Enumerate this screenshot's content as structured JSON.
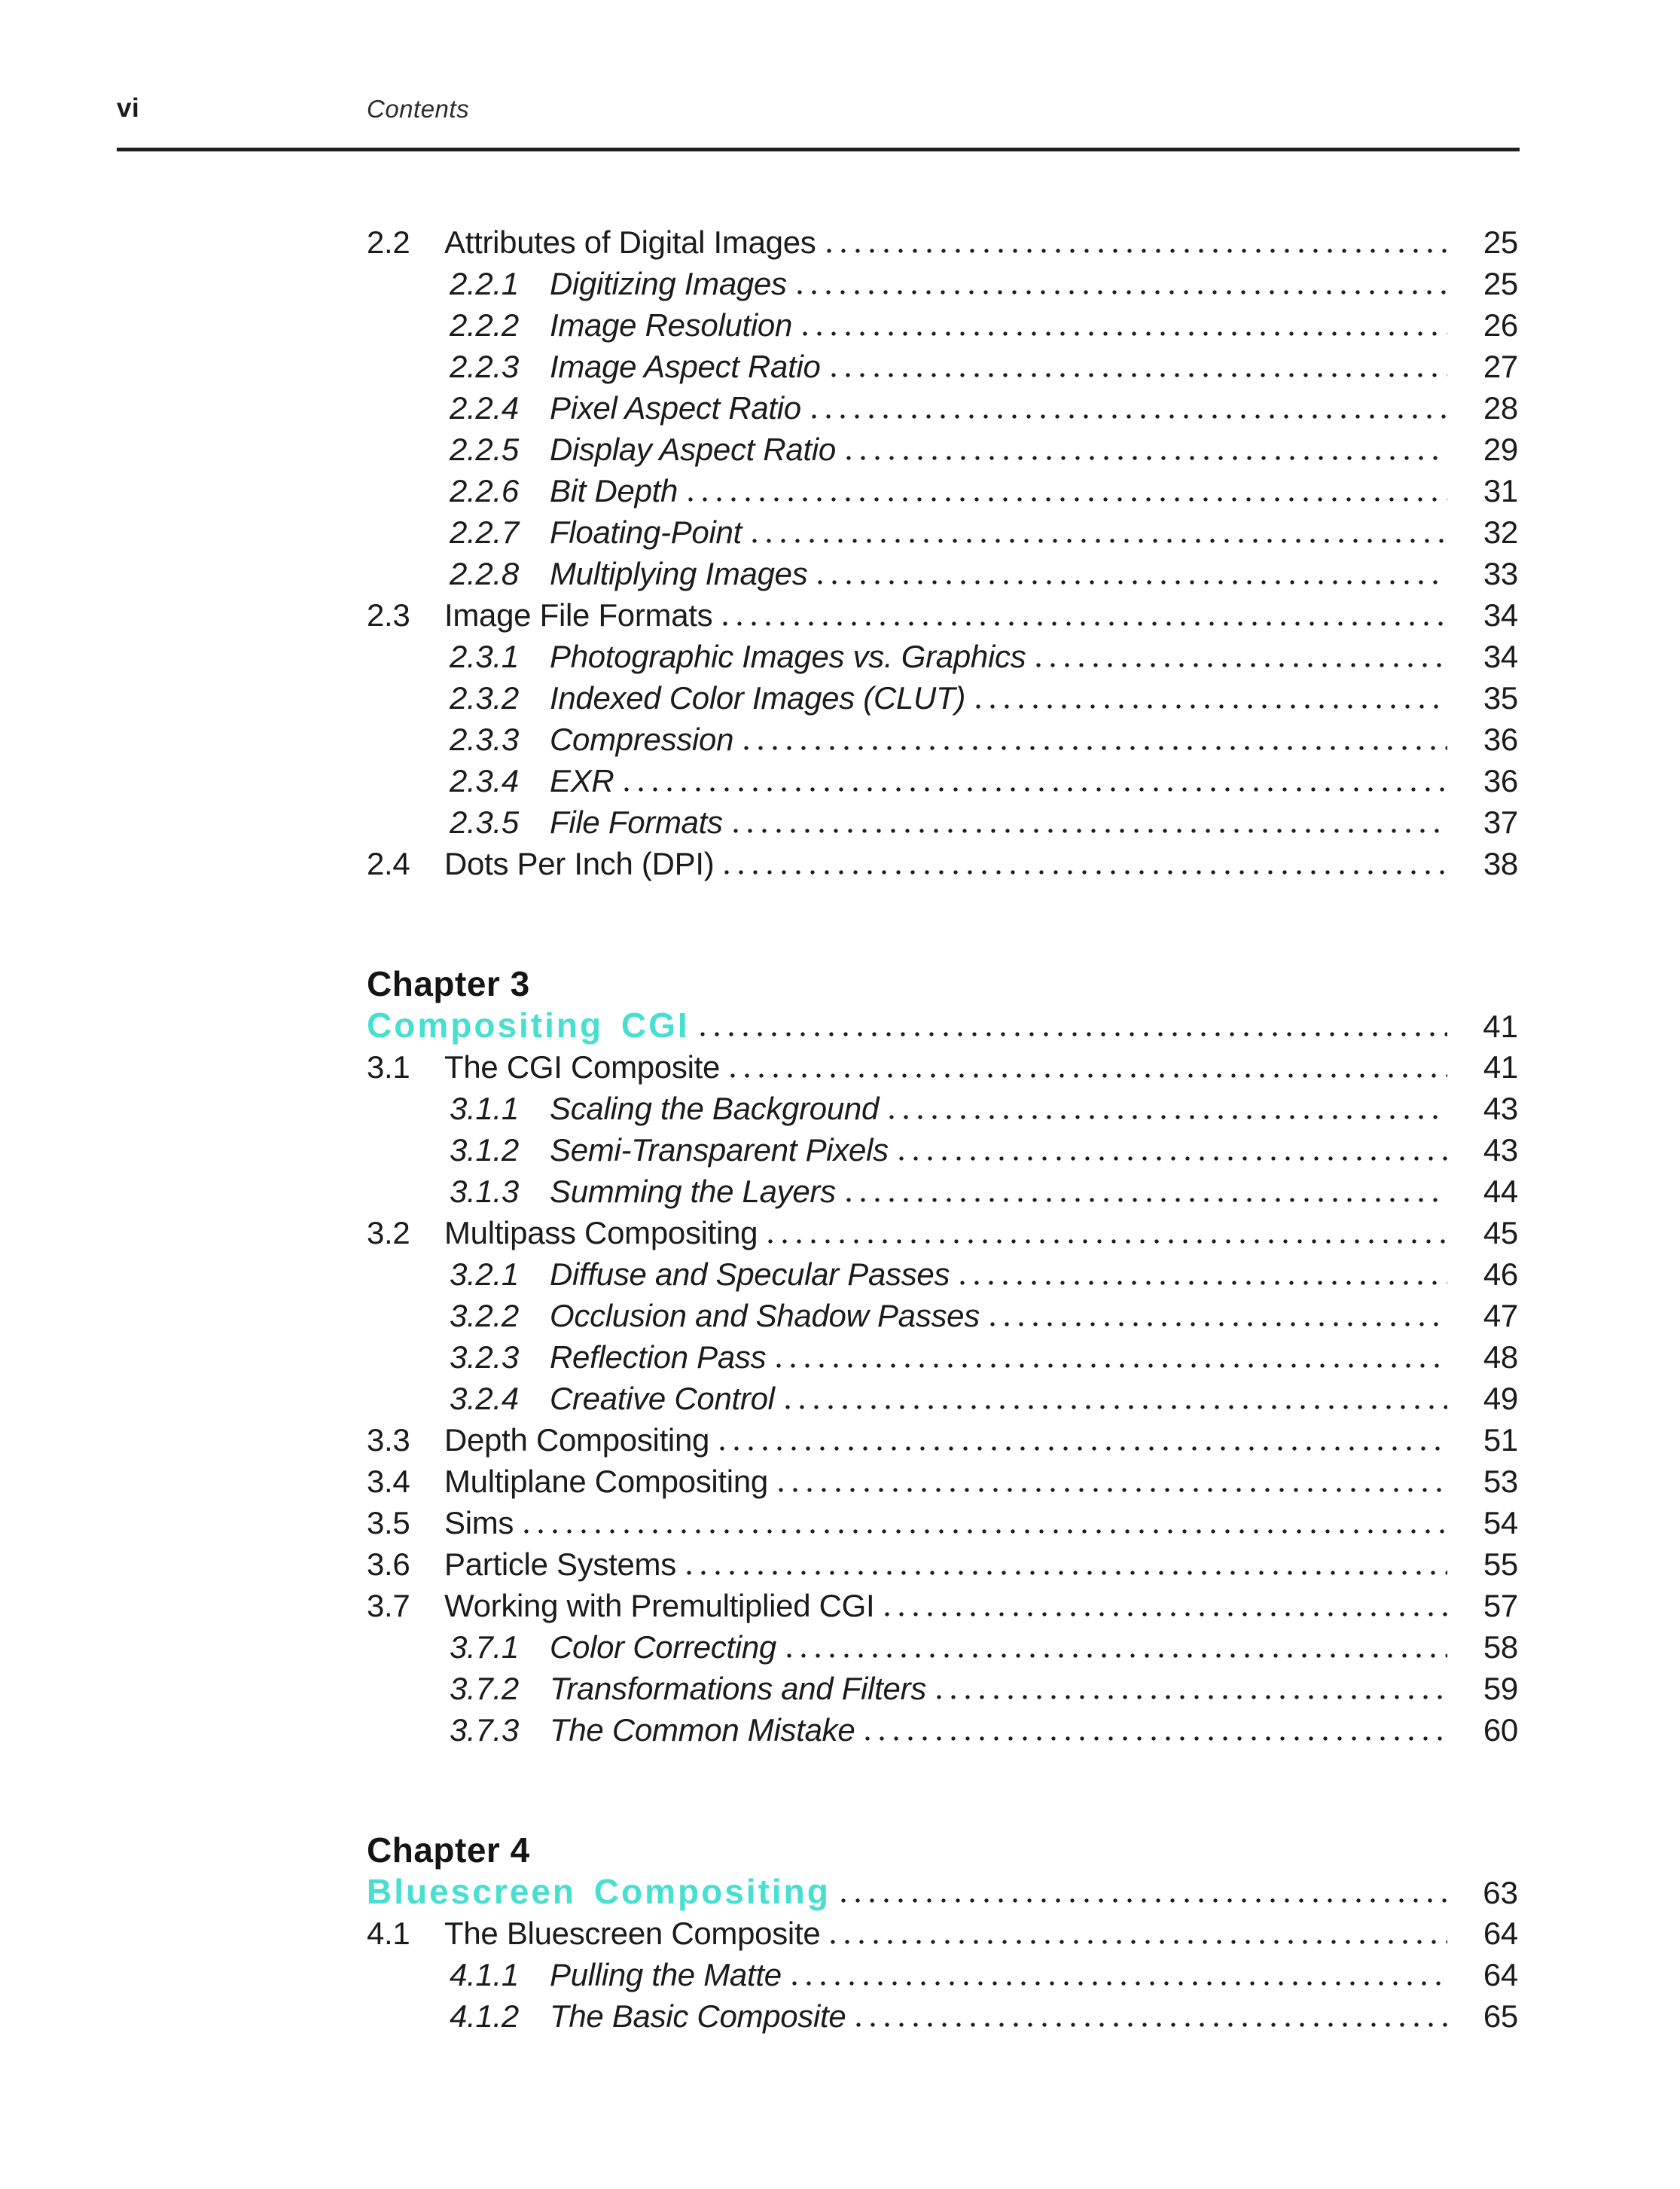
{
  "header": {
    "folio": "vi",
    "running_title": "Contents"
  },
  "colors": {
    "accent": "#46dfd0",
    "text": "#1b1b1b"
  },
  "toc": [
    {
      "type": "entry",
      "level": 1,
      "number": "2.2",
      "title": "Attributes of Digital Images",
      "page": "25"
    },
    {
      "type": "entry",
      "level": 2,
      "number": "2.2.1",
      "title": "Digitizing Images",
      "page": "25"
    },
    {
      "type": "entry",
      "level": 2,
      "number": "2.2.2",
      "title": "Image Resolution",
      "page": "26"
    },
    {
      "type": "entry",
      "level": 2,
      "number": "2.2.3",
      "title": "Image Aspect Ratio",
      "page": "27"
    },
    {
      "type": "entry",
      "level": 2,
      "number": "2.2.4",
      "title": "Pixel Aspect Ratio",
      "page": "28"
    },
    {
      "type": "entry",
      "level": 2,
      "number": "2.2.5",
      "title": "Display Aspect Ratio",
      "page": "29"
    },
    {
      "type": "entry",
      "level": 2,
      "number": "2.2.6",
      "title": "Bit Depth",
      "page": "31"
    },
    {
      "type": "entry",
      "level": 2,
      "number": "2.2.7",
      "title": "Floating-Point",
      "page": "32"
    },
    {
      "type": "entry",
      "level": 2,
      "number": "2.2.8",
      "title": "Multiplying Images",
      "page": "33"
    },
    {
      "type": "entry",
      "level": 1,
      "number": "2.3",
      "title": "Image File Formats",
      "page": "34"
    },
    {
      "type": "entry",
      "level": 2,
      "number": "2.3.1",
      "title": "Photographic Images vs. Graphics",
      "page": "34"
    },
    {
      "type": "entry",
      "level": 2,
      "number": "2.3.2",
      "title": "Indexed Color Images (CLUT)",
      "page": "35"
    },
    {
      "type": "entry",
      "level": 2,
      "number": "2.3.3",
      "title": "Compression",
      "page": "36"
    },
    {
      "type": "entry",
      "level": 2,
      "number": "2.3.4",
      "title": "EXR",
      "page": "36"
    },
    {
      "type": "entry",
      "level": 2,
      "number": "2.3.5",
      "title": "File Formats",
      "page": "37"
    },
    {
      "type": "entry",
      "level": 1,
      "number": "2.4",
      "title": "Dots Per Inch (DPI)",
      "page": "38"
    },
    {
      "type": "chapter",
      "label": "Chapter 3",
      "title": "Compositing CGI",
      "page": "41"
    },
    {
      "type": "entry",
      "level": 1,
      "number": "3.1",
      "title": "The CGI Composite",
      "page": "41"
    },
    {
      "type": "entry",
      "level": 2,
      "number": "3.1.1",
      "title": "Scaling the Background",
      "page": "43"
    },
    {
      "type": "entry",
      "level": 2,
      "number": "3.1.2",
      "title": "Semi-Transparent Pixels",
      "page": "43"
    },
    {
      "type": "entry",
      "level": 2,
      "number": "3.1.3",
      "title": "Summing the Layers",
      "page": "44"
    },
    {
      "type": "entry",
      "level": 1,
      "number": "3.2",
      "title": "Multipass Compositing",
      "page": "45"
    },
    {
      "type": "entry",
      "level": 2,
      "number": "3.2.1",
      "title": "Diffuse and Specular Passes",
      "page": "46"
    },
    {
      "type": "entry",
      "level": 2,
      "number": "3.2.2",
      "title": "Occlusion and Shadow Passes",
      "page": "47"
    },
    {
      "type": "entry",
      "level": 2,
      "number": "3.2.3",
      "title": "Reflection Pass",
      "page": "48"
    },
    {
      "type": "entry",
      "level": 2,
      "number": "3.2.4",
      "title": "Creative Control",
      "page": "49"
    },
    {
      "type": "entry",
      "level": 1,
      "number": "3.3",
      "title": "Depth Compositing",
      "page": "51"
    },
    {
      "type": "entry",
      "level": 1,
      "number": "3.4",
      "title": "Multiplane Compositing",
      "page": "53"
    },
    {
      "type": "entry",
      "level": 1,
      "number": "3.5",
      "title": "Sims",
      "page": "54"
    },
    {
      "type": "entry",
      "level": 1,
      "number": "3.6",
      "title": "Particle Systems",
      "page": "55"
    },
    {
      "type": "entry",
      "level": 1,
      "number": "3.7",
      "title": "Working with Premultiplied CGI",
      "page": "57"
    },
    {
      "type": "entry",
      "level": 2,
      "number": "3.7.1",
      "title": "Color Correcting",
      "page": "58"
    },
    {
      "type": "entry",
      "level": 2,
      "number": "3.7.2",
      "title": "Transformations and Filters",
      "page": "59"
    },
    {
      "type": "entry",
      "level": 2,
      "number": "3.7.3",
      "title": "The Common Mistake",
      "page": "60"
    },
    {
      "type": "chapter",
      "label": "Chapter 4",
      "title": "Bluescreen Compositing",
      "page": "63"
    },
    {
      "type": "entry",
      "level": 1,
      "number": "4.1",
      "title": "The Bluescreen Composite",
      "page": "64"
    },
    {
      "type": "entry",
      "level": 2,
      "number": "4.1.1",
      "title": "Pulling the Matte",
      "page": "64"
    },
    {
      "type": "entry",
      "level": 2,
      "number": "4.1.2",
      "title": "The Basic Composite",
      "page": "65"
    }
  ]
}
